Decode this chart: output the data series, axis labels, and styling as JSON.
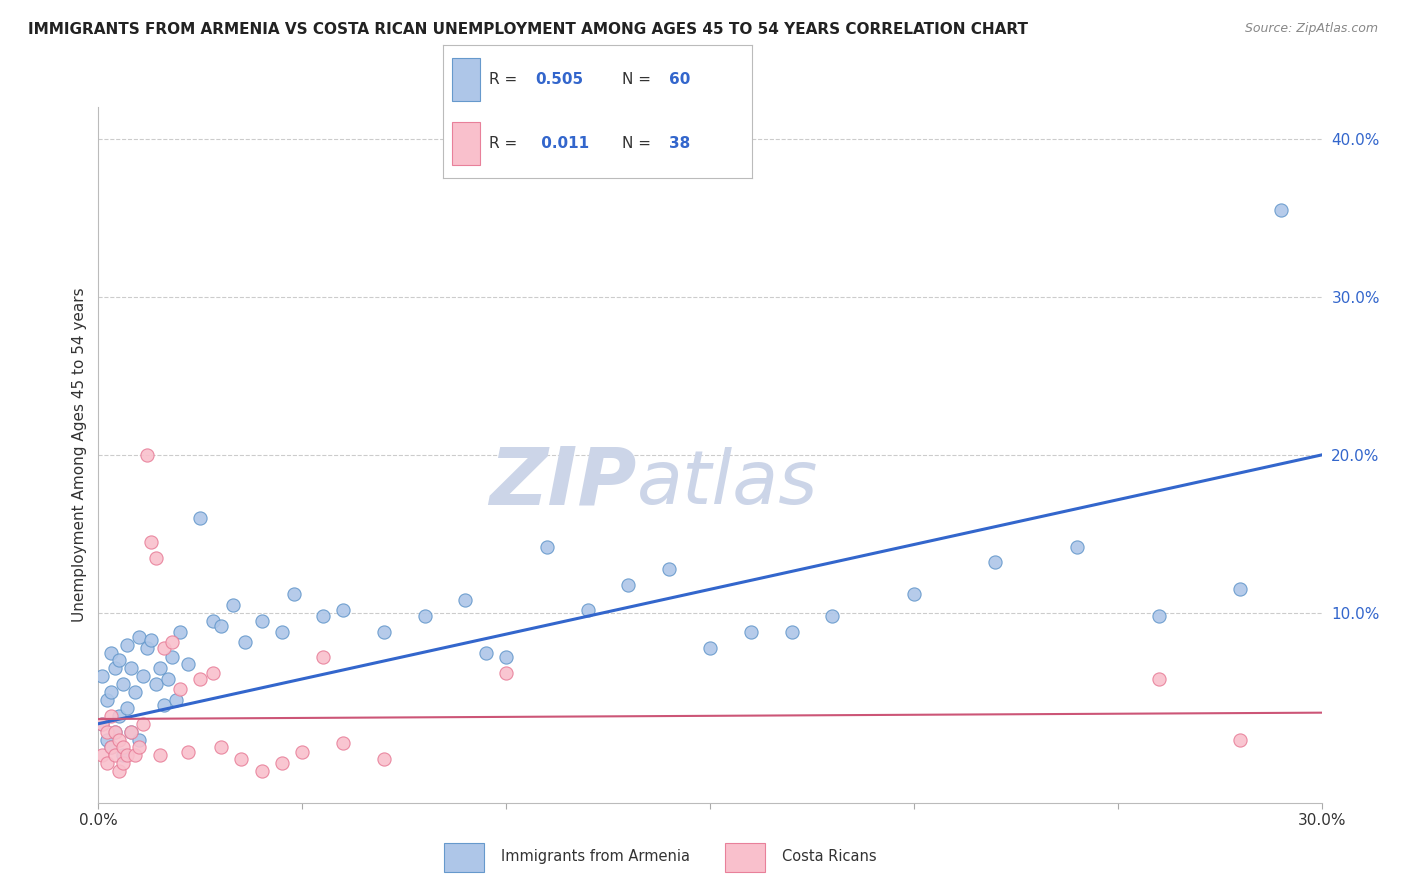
{
  "title": "IMMIGRANTS FROM ARMENIA VS COSTA RICAN UNEMPLOYMENT AMONG AGES 45 TO 54 YEARS CORRELATION CHART",
  "source": "Source: ZipAtlas.com",
  "ylabel": "Unemployment Among Ages 45 to 54 years",
  "xlim": [
    0.0,
    0.3
  ],
  "ylim": [
    -0.02,
    0.42
  ],
  "series1_color": "#aec6e8",
  "series1_edge": "#6699cc",
  "series1_line_color": "#3366cc",
  "series1_label": "Immigrants from Armenia",
  "series2_color": "#f9c0cc",
  "series2_edge": "#e8809a",
  "series2_line_color": "#cc5577",
  "series2_label": "Costa Ricans",
  "watermark_zip": "ZIP",
  "watermark_atlas": "atlas",
  "watermark_color": "#ccd5e8",
  "grid_color": "#cccccc",
  "background_color": "#ffffff",
  "title_fontsize": 11,
  "legend_color": "#3366cc",
  "blue_scatter_x": [
    0.001,
    0.001,
    0.002,
    0.002,
    0.003,
    0.003,
    0.003,
    0.004,
    0.004,
    0.005,
    0.005,
    0.006,
    0.006,
    0.007,
    0.007,
    0.008,
    0.008,
    0.009,
    0.01,
    0.01,
    0.011,
    0.012,
    0.013,
    0.014,
    0.015,
    0.016,
    0.017,
    0.018,
    0.019,
    0.02,
    0.022,
    0.025,
    0.028,
    0.03,
    0.033,
    0.036,
    0.04,
    0.045,
    0.048,
    0.055,
    0.06,
    0.07,
    0.08,
    0.09,
    0.1,
    0.11,
    0.12,
    0.14,
    0.16,
    0.18,
    0.2,
    0.22,
    0.24,
    0.26,
    0.28,
    0.29,
    0.15,
    0.17,
    0.13,
    0.095
  ],
  "blue_scatter_y": [
    0.06,
    0.03,
    0.045,
    0.02,
    0.075,
    0.05,
    0.015,
    0.065,
    0.025,
    0.07,
    0.035,
    0.055,
    0.01,
    0.08,
    0.04,
    0.065,
    0.025,
    0.05,
    0.085,
    0.02,
    0.06,
    0.078,
    0.083,
    0.055,
    0.065,
    0.042,
    0.058,
    0.072,
    0.045,
    0.088,
    0.068,
    0.16,
    0.095,
    0.092,
    0.105,
    0.082,
    0.095,
    0.088,
    0.112,
    0.098,
    0.102,
    0.088,
    0.098,
    0.108,
    0.072,
    0.142,
    0.102,
    0.128,
    0.088,
    0.098,
    0.112,
    0.132,
    0.142,
    0.098,
    0.115,
    0.355,
    0.078,
    0.088,
    0.118,
    0.075
  ],
  "pink_scatter_x": [
    0.001,
    0.001,
    0.002,
    0.002,
    0.003,
    0.003,
    0.004,
    0.004,
    0.005,
    0.005,
    0.006,
    0.006,
    0.007,
    0.008,
    0.009,
    0.01,
    0.011,
    0.012,
    0.013,
    0.014,
    0.015,
    0.016,
    0.018,
    0.02,
    0.022,
    0.025,
    0.028,
    0.03,
    0.035,
    0.04,
    0.045,
    0.05,
    0.055,
    0.06,
    0.07,
    0.1,
    0.26,
    0.28
  ],
  "pink_scatter_y": [
    0.01,
    0.03,
    0.025,
    0.005,
    0.015,
    0.035,
    0.01,
    0.025,
    0.0,
    0.02,
    0.015,
    0.005,
    0.01,
    0.025,
    0.01,
    0.015,
    0.03,
    0.2,
    0.145,
    0.135,
    0.01,
    0.078,
    0.082,
    0.052,
    0.012,
    0.058,
    0.062,
    0.015,
    0.008,
    0.0,
    0.005,
    0.012,
    0.072,
    0.018,
    0.008,
    0.062,
    0.058,
    0.02
  ],
  "blue_trend_x": [
    0.0,
    0.3
  ],
  "blue_trend_y": [
    0.03,
    0.2
  ],
  "pink_trend_x": [
    0.0,
    0.3
  ],
  "pink_trend_y": [
    0.033,
    0.037
  ]
}
